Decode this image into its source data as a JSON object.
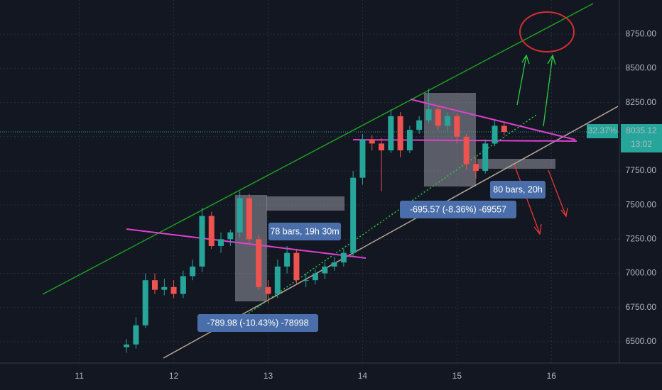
{
  "chart_data": {
    "type": "candlestick",
    "x": [
      11.5,
      11.6,
      11.7,
      11.8,
      11.9,
      12.0,
      12.1,
      12.2,
      12.3,
      12.4,
      12.5,
      12.6,
      12.7,
      12.8,
      12.9,
      13.0,
      13.1,
      13.2,
      13.3,
      13.4,
      13.5,
      13.6,
      13.7,
      13.8,
      13.9,
      14.0,
      14.1,
      14.2,
      14.3,
      14.4,
      14.5,
      14.6,
      14.7,
      14.8,
      14.9,
      15.0,
      15.1,
      15.2,
      15.3,
      15.4,
      15.5
    ],
    "open": [
      6460,
      6480,
      6620,
      6950,
      6880,
      6900,
      6850,
      6980,
      7050,
      7420,
      7200,
      7250,
      7300,
      7550,
      7250,
      6900,
      6850,
      7050,
      7150,
      6950,
      6950,
      7000,
      7050,
      7080,
      7150,
      7700,
      7980,
      7950,
      7900,
      8150,
      7900,
      8050,
      8120,
      8200,
      8080,
      8150,
      8000,
      7800,
      7750,
      7950,
      8080
    ],
    "high": [
      6520,
      6680,
      7000,
      7000,
      6960,
      6950,
      7020,
      7100,
      7480,
      7450,
      7300,
      7320,
      7600,
      7580,
      7280,
      6950,
      7100,
      7200,
      7180,
      7000,
      7030,
      7080,
      7120,
      7180,
      7750,
      8020,
      8010,
      7990,
      8200,
      8180,
      8080,
      8150,
      8350,
      8230,
      8180,
      8170,
      8020,
      7850,
      7980,
      8120,
      8110
    ],
    "low": [
      6420,
      6450,
      6600,
      6850,
      6840,
      6820,
      6820,
      6950,
      7010,
      7180,
      7150,
      7200,
      7260,
      7220,
      6880,
      6780,
      6820,
      7000,
      6920,
      6900,
      6920,
      6960,
      7020,
      7050,
      7120,
      7650,
      7900,
      7600,
      7880,
      7850,
      7880,
      8020,
      8100,
      8050,
      8040,
      7950,
      7760,
      7690,
      7730,
      7930,
      8010
    ],
    "close": [
      6480,
      6620,
      6950,
      6880,
      6900,
      6850,
      6980,
      7050,
      7420,
      7200,
      7250,
      7300,
      7550,
      7250,
      6900,
      6850,
      7050,
      7150,
      6950,
      6950,
      7000,
      7050,
      7080,
      7150,
      7700,
      7980,
      7950,
      7900,
      8150,
      7900,
      8050,
      8120,
      8200,
      8080,
      8150,
      8000,
      7800,
      7750,
      7950,
      8080,
      8035.12
    ],
    "up_color": "#26a69a",
    "down_color": "#ef5350",
    "xlim": [
      10.16,
      16.72
    ],
    "xticks": [
      11,
      12,
      13,
      14,
      15,
      16
    ],
    "ylim": [
      6344,
      9000
    ],
    "yticks": [
      {
        "value": 6500,
        "label": "6500.00"
      },
      {
        "value": 6750,
        "label": "6750.00"
      },
      {
        "value": 7000,
        "label": "7000.00"
      },
      {
        "value": 7250,
        "label": "7250.00"
      },
      {
        "value": 7500,
        "label": "7500.00"
      },
      {
        "value": 7750,
        "label": "7750.00"
      },
      {
        "value": 8000,
        "label": "8000.00"
      },
      {
        "value": 8250,
        "label": "8250.00"
      },
      {
        "value": 8500,
        "label": "8500.00"
      },
      {
        "value": 8750,
        "label": "8750.00"
      }
    ],
    "grid": true,
    "last_price": 8035.12,
    "change_label": "32.37%",
    "countdown": "13:02",
    "annotations": [
      "78 bars, 19h 30m",
      "-789.98 (-10.43%) -78998",
      "-695.57 (-8.36%) -69557",
      "80 bars, 20h"
    ]
  }
}
